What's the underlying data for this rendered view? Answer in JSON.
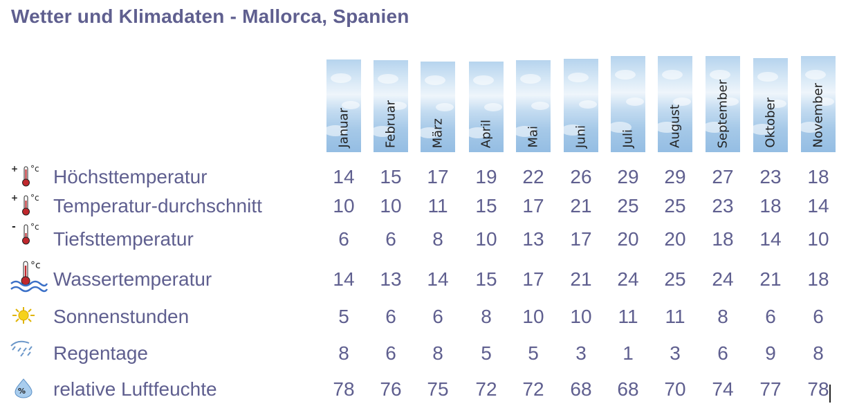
{
  "title": "Wetter und Klimadaten - Mallorca, Spanien",
  "months": [
    "Januar",
    "Februar",
    "März",
    "April",
    "Mai",
    "Juni",
    "Juli",
    "August",
    "September",
    "Oktober",
    "November"
  ],
  "rows": [
    {
      "label": "Höchsttemperatur",
      "icon": "thermometer-max-icon",
      "values": [
        "14",
        "15",
        "17",
        "19",
        "22",
        "26",
        "29",
        "29",
        "27",
        "23",
        "18"
      ]
    },
    {
      "label": "Temperatur-durchschnitt",
      "icon": "thermometer-avg-icon",
      "values": [
        "10",
        "10",
        "11",
        "15",
        "17",
        "21",
        "25",
        "25",
        "23",
        "18",
        "14"
      ]
    },
    {
      "label": "Tiefsttemperatur",
      "icon": "thermometer-min-icon",
      "values": [
        "6",
        "6",
        "8",
        "10",
        "13",
        "17",
        "20",
        "20",
        "18",
        "14",
        "10"
      ]
    },
    {
      "label": "Wassertemperatur",
      "icon": "water-temperature-icon",
      "values": [
        "14",
        "13",
        "14",
        "15",
        "17",
        "21",
        "24",
        "25",
        "24",
        "21",
        "18"
      ]
    },
    {
      "label": "Sonnenstunden",
      "icon": "sun-icon",
      "values": [
        "5",
        "6",
        "6",
        "8",
        "10",
        "10",
        "11",
        "11",
        "8",
        "6",
        "6"
      ]
    },
    {
      "label": "Regentage",
      "icon": "rain-icon",
      "values": [
        "8",
        "6",
        "8",
        "5",
        "5",
        "3",
        "1",
        "3",
        "6",
        "9",
        "8"
      ]
    },
    {
      "label": "relative Luftfeuchte",
      "icon": "humidity-icon",
      "values": [
        "78",
        "76",
        "75",
        "72",
        "72",
        "68",
        "68",
        "70",
        "74",
        "77",
        "78"
      ]
    }
  ],
  "colors": {
    "text": "#5f5f8f",
    "thermometer": "#c0282d",
    "sky": "#a6c9e8"
  }
}
